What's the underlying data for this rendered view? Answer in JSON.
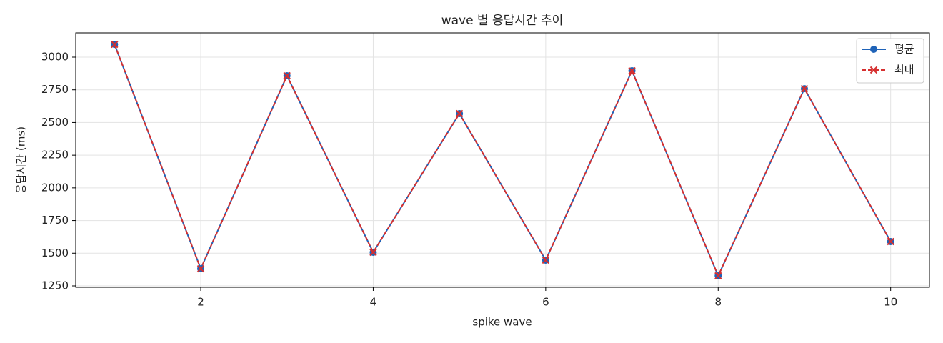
{
  "chart_data": {
    "type": "line",
    "title": "wave 별 응답시간 추이",
    "x_label": "spike wave",
    "y_label": "응답시간 (ms)",
    "x": [
      1,
      2,
      3,
      4,
      5,
      6,
      7,
      8,
      9,
      10
    ],
    "series": [
      {
        "name": "평균",
        "color": "#1f63b8",
        "marker": "o",
        "dash": false,
        "values": [
          3098,
          1381,
          2858,
          1507,
          2568,
          1447,
          2896,
          1327,
          2759,
          1589
        ]
      },
      {
        "name": "최대",
        "color": "#d62f2f",
        "marker": "x",
        "dash": true,
        "values": [
          3098,
          1381,
          2858,
          1507,
          2568,
          1447,
          2896,
          1327,
          2759,
          1589
        ]
      }
    ],
    "xlim": [
      0.55,
      10.45
    ],
    "xticks": [
      2,
      4,
      6,
      8,
      10
    ],
    "ylim": [
      1239,
      3186
    ],
    "yticks": [
      1250,
      1500,
      1750,
      2000,
      2250,
      2500,
      2750,
      3000
    ],
    "grid": true,
    "legend": "upper right"
  }
}
